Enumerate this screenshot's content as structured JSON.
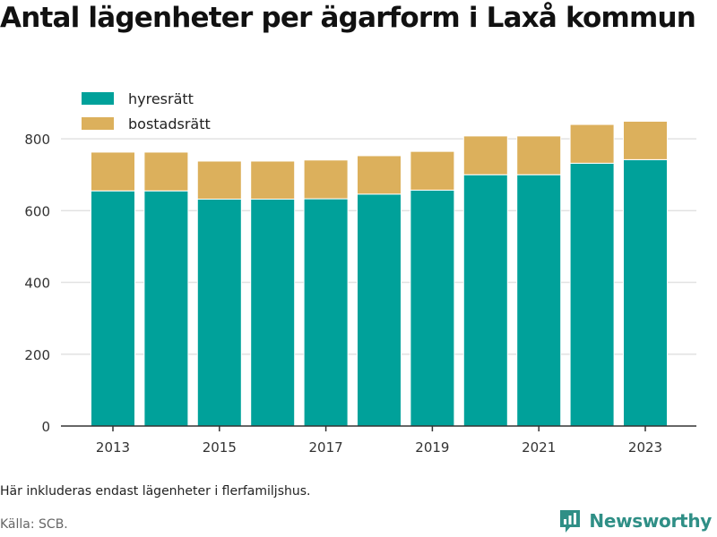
{
  "title": "Antal lägenheter per ägarform i Laxå kommun",
  "note": "Här inkluderas endast lägenheter i flerfamiljshus.",
  "source": "Källa: SCB.",
  "brand": {
    "label": "Newsworthy",
    "icon": "newsworthy-logo-icon",
    "color": "#2f8f86"
  },
  "colors": {
    "hyresratt": "#00a19a",
    "bostadsratt": "#dcb05c",
    "grid": "#e2e2e2",
    "axis": "#333333",
    "tick_text": "#333333"
  },
  "chart_data": {
    "type": "bar",
    "stacked": true,
    "categories": [
      "2013",
      "2014",
      "2015",
      "2016",
      "2017",
      "2018",
      "2019",
      "2020",
      "2021",
      "2022",
      "2023"
    ],
    "x_tick_labels": [
      "2013",
      "2015",
      "2017",
      "2019",
      "2021",
      "2023"
    ],
    "series": [
      {
        "name": "hyresrätt",
        "color": "#00a19a",
        "values": [
          655,
          655,
          632,
          632,
          633,
          646,
          657,
          700,
          700,
          732,
          742
        ]
      },
      {
        "name": "bostadsrätt",
        "color": "#dcb05c",
        "values": [
          108,
          108,
          106,
          106,
          108,
          107,
          108,
          108,
          108,
          108,
          107
        ]
      }
    ],
    "ylim": [
      0,
      900
    ],
    "y_ticks": [
      "0",
      "200",
      "400",
      "600",
      "800"
    ],
    "y_tick_values": [
      0,
      200,
      400,
      600,
      800
    ],
    "grid": true,
    "legend_position": "top-left",
    "xlabel": "",
    "ylabel": ""
  }
}
